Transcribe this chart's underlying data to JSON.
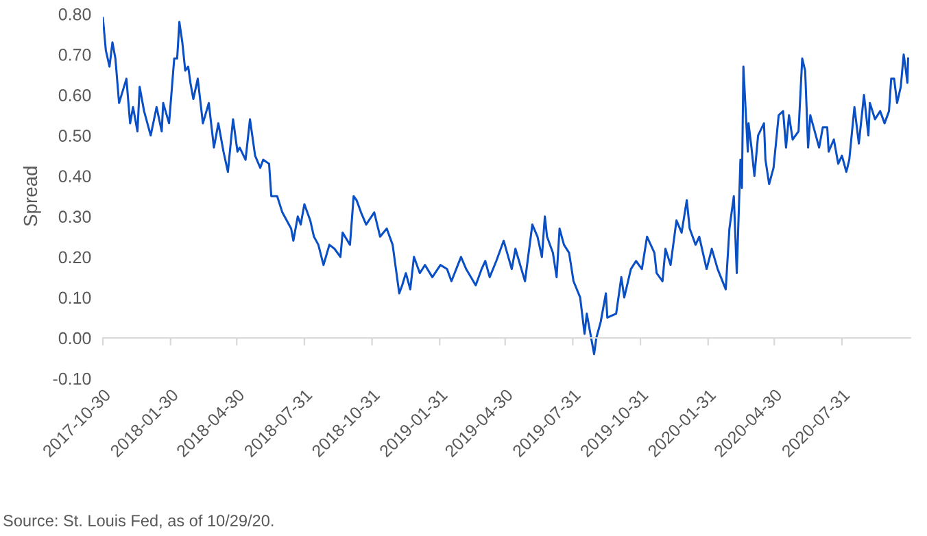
{
  "chart_data": {
    "type": "line",
    "ylabel": "Spread",
    "annotations": [
      "Source: St. Louis Fed, as of 10/29/20."
    ],
    "x": [
      "2017-10-30",
      "2017-11-03",
      "2017-11-08",
      "2017-11-12",
      "2017-11-16",
      "2017-11-21",
      "2017-12-01",
      "2017-12-06",
      "2017-12-10",
      "2017-12-16",
      "2017-12-19",
      "2017-12-25",
      "2018-01-03",
      "2018-01-11",
      "2018-01-18",
      "2018-01-20",
      "2018-01-28",
      "2018-02-04",
      "2018-02-08",
      "2018-02-11",
      "2018-02-15",
      "2018-02-19",
      "2018-02-23",
      "2018-02-26",
      "2018-03-02",
      "2018-03-08",
      "2018-03-15",
      "2018-03-23",
      "2018-03-30",
      "2018-04-05",
      "2018-04-12",
      "2018-04-18",
      "2018-04-25",
      "2018-05-01",
      "2018-05-04",
      "2018-05-12",
      "2018-05-18",
      "2018-05-25",
      "2018-06-01",
      "2018-06-05",
      "2018-06-13",
      "2018-06-16",
      "2018-06-24",
      "2018-07-01",
      "2018-07-13",
      "2018-07-16",
      "2018-07-22",
      "2018-07-26",
      "2018-07-31",
      "2018-08-08",
      "2018-08-13",
      "2018-08-19",
      "2018-08-26",
      "2018-09-03",
      "2018-09-10",
      "2018-09-18",
      "2018-09-21",
      "2018-10-01",
      "2018-10-06",
      "2018-10-10",
      "2018-10-16",
      "2018-10-23",
      "2018-11-03",
      "2018-11-11",
      "2018-11-20",
      "2018-11-28",
      "2018-12-07",
      "2018-12-11",
      "2018-12-16",
      "2018-12-22",
      "2018-12-27",
      "2019-01-04",
      "2019-01-11",
      "2019-01-21",
      "2019-02-01",
      "2019-02-10",
      "2019-02-16",
      "2019-03-01",
      "2019-03-08",
      "2019-03-21",
      "2019-03-29",
      "2019-04-03",
      "2019-04-09",
      "2019-04-18",
      "2019-04-28",
      "2019-05-09",
      "2019-05-14",
      "2019-05-27",
      "2019-06-06",
      "2019-06-13",
      "2019-06-19",
      "2019-06-23",
      "2019-06-26",
      "2019-07-04",
      "2019-07-09",
      "2019-07-13",
      "2019-07-19",
      "2019-07-26",
      "2019-08-01",
      "2019-08-10",
      "2019-08-16",
      "2019-08-19",
      "2019-08-23",
      "2019-08-29",
      "2019-09-01",
      "2019-09-07",
      "2019-09-14",
      "2019-09-16",
      "2019-09-28",
      "2019-10-05",
      "2019-10-09",
      "2019-10-18",
      "2019-10-25",
      "2019-11-02",
      "2019-11-09",
      "2019-11-19",
      "2019-11-22",
      "2019-11-30",
      "2019-12-04",
      "2019-12-11",
      "2019-12-19",
      "2019-12-26",
      "2020-01-02",
      "2020-01-06",
      "2020-01-14",
      "2020-01-19",
      "2020-01-29",
      "2020-02-05",
      "2020-02-13",
      "2020-02-24",
      "2020-02-29",
      "2020-03-06",
      "2020-03-10",
      "2020-03-15",
      "2020-03-17",
      "2020-03-19",
      "2020-03-25",
      "2020-03-26",
      "2020-03-30",
      "2020-04-03",
      "2020-04-08",
      "2020-04-16",
      "2020-04-18",
      "2020-04-23",
      "2020-04-29",
      "2020-05-06",
      "2020-05-12",
      "2020-05-16",
      "2020-05-20",
      "2020-05-25",
      "2020-06-02",
      "2020-06-07",
      "2020-06-11",
      "2020-06-15",
      "2020-06-18",
      "2020-06-24",
      "2020-06-30",
      "2020-07-05",
      "2020-07-11",
      "2020-07-13",
      "2020-07-20",
      "2020-07-26",
      "2020-07-31",
      "2020-08-06",
      "2020-08-10",
      "2020-08-17",
      "2020-08-23",
      "2020-08-30",
      "2020-09-05",
      "2020-09-07",
      "2020-09-14",
      "2020-09-21",
      "2020-09-27",
      "2020-10-03",
      "2020-10-06",
      "2020-10-10",
      "2020-10-14",
      "2020-10-19",
      "2020-10-23",
      "2020-10-26",
      "2020-10-28",
      "2020-10-29"
    ],
    "series": [
      {
        "color": "#0a4fc4",
        "values": [
          0.79,
          0.71,
          0.67,
          0.73,
          0.69,
          0.58,
          0.64,
          0.53,
          0.57,
          0.51,
          0.62,
          0.56,
          0.5,
          0.57,
          0.51,
          0.58,
          0.53,
          0.69,
          0.69,
          0.78,
          0.73,
          0.66,
          0.67,
          0.63,
          0.59,
          0.64,
          0.53,
          0.58,
          0.47,
          0.53,
          0.46,
          0.41,
          0.54,
          0.46,
          0.47,
          0.44,
          0.54,
          0.45,
          0.42,
          0.44,
          0.43,
          0.35,
          0.35,
          0.31,
          0.27,
          0.24,
          0.3,
          0.28,
          0.33,
          0.29,
          0.25,
          0.23,
          0.18,
          0.23,
          0.22,
          0.2,
          0.26,
          0.23,
          0.35,
          0.34,
          0.31,
          0.28,
          0.31,
          0.25,
          0.27,
          0.23,
          0.11,
          0.13,
          0.16,
          0.12,
          0.2,
          0.16,
          0.18,
          0.15,
          0.18,
          0.17,
          0.14,
          0.2,
          0.17,
          0.13,
          0.17,
          0.19,
          0.15,
          0.19,
          0.24,
          0.17,
          0.22,
          0.14,
          0.28,
          0.25,
          0.2,
          0.3,
          0.25,
          0.21,
          0.15,
          0.27,
          0.23,
          0.21,
          0.14,
          0.1,
          0.01,
          0.06,
          0.02,
          -0.04,
          0.0,
          0.04,
          0.11,
          0.05,
          0.06,
          0.15,
          0.1,
          0.17,
          0.19,
          0.17,
          0.25,
          0.21,
          0.16,
          0.14,
          0.22,
          0.18,
          0.29,
          0.26,
          0.34,
          0.27,
          0.23,
          0.25,
          0.17,
          0.22,
          0.17,
          0.12,
          0.27,
          0.35,
          0.16,
          0.44,
          0.37,
          0.67,
          0.46,
          0.53,
          0.47,
          0.4,
          0.5,
          0.53,
          0.44,
          0.38,
          0.42,
          0.55,
          0.56,
          0.47,
          0.55,
          0.49,
          0.51,
          0.69,
          0.66,
          0.47,
          0.55,
          0.51,
          0.47,
          0.52,
          0.52,
          0.46,
          0.49,
          0.43,
          0.45,
          0.41,
          0.44,
          0.57,
          0.48,
          0.6,
          0.5,
          0.58,
          0.54,
          0.56,
          0.53,
          0.56,
          0.64,
          0.64,
          0.58,
          0.62,
          0.7,
          0.66,
          0.63,
          0.69
        ]
      }
    ],
    "xlim": [
      "2017-10-30",
      "2020-11-01"
    ],
    "xticks": [
      "2017-10-30",
      "2018-01-30",
      "2018-04-30",
      "2018-07-31",
      "2018-10-31",
      "2019-01-31",
      "2019-04-30",
      "2019-07-31",
      "2019-10-31",
      "2020-01-31",
      "2020-04-30",
      "2020-07-31"
    ],
    "ylim": [
      -0.1,
      0.8
    ],
    "yticks": [
      {
        "value": -0.1,
        "label": "-0.10"
      },
      {
        "value": 0.0,
        "label": "0.00"
      },
      {
        "value": 0.1,
        "label": "0.10"
      },
      {
        "value": 0.2,
        "label": "0.20"
      },
      {
        "value": 0.3,
        "label": "0.30"
      },
      {
        "value": 0.4,
        "label": "0.40"
      },
      {
        "value": 0.5,
        "label": "0.50"
      },
      {
        "value": 0.6,
        "label": "0.60"
      },
      {
        "value": 0.7,
        "label": "0.70"
      },
      {
        "value": 0.8,
        "label": "0.80"
      }
    ],
    "tick_labels": true
  }
}
